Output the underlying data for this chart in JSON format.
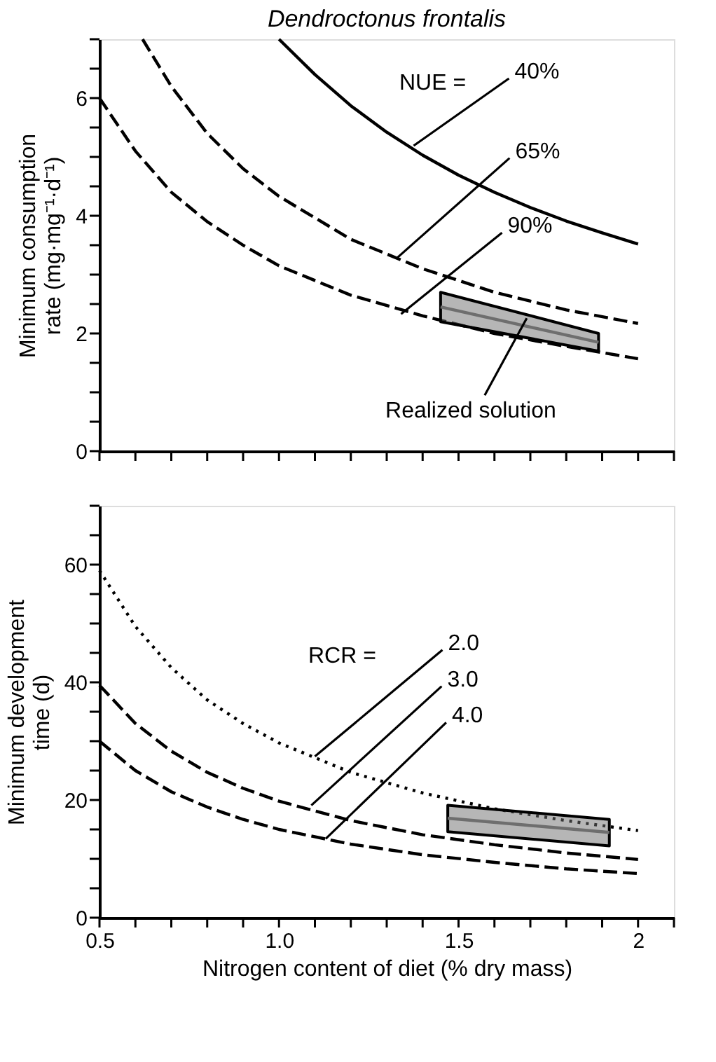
{
  "chart_data": [
    {
      "type": "line",
      "title": "Dendroctonus frontalis",
      "ylabel": "Minimum consumption rate (mg·mg⁻¹·d⁻¹)",
      "xlim": [
        0.5,
        2.1
      ],
      "xticks": [
        {
          "value": 0.5,
          "label": null
        },
        {
          "value": 0.6,
          "label": null
        },
        {
          "value": 0.7,
          "label": null
        },
        {
          "value": 0.8,
          "label": null
        },
        {
          "value": 0.9,
          "label": null
        },
        {
          "value": 1.0,
          "label": null
        },
        {
          "value": 1.1,
          "label": null
        },
        {
          "value": 1.2,
          "label": null
        },
        {
          "value": 1.3,
          "label": null
        },
        {
          "value": 1.4,
          "label": null
        },
        {
          "value": 1.5,
          "label": null
        },
        {
          "value": 1.6,
          "label": null
        },
        {
          "value": 1.7,
          "label": null
        },
        {
          "value": 1.8,
          "label": null
        },
        {
          "value": 1.9,
          "label": null
        },
        {
          "value": 2.0,
          "label": null
        },
        {
          "value": 2.1,
          "label": null
        }
      ],
      "ylim": [
        0,
        7
      ],
      "yticks": [
        0,
        {
          "value": 0.5,
          "label": null
        },
        {
          "value": 1,
          "label": null
        },
        {
          "value": 1.5,
          "label": null
        },
        2,
        {
          "value": 2.5,
          "label": null
        },
        {
          "value": 3,
          "label": null
        },
        {
          "value": 3.5,
          "label": null
        },
        4,
        {
          "value": 4.5,
          "label": null
        },
        {
          "value": 5,
          "label": null
        },
        {
          "value": 5.5,
          "label": null
        },
        6,
        {
          "value": 6.5,
          "label": null
        },
        {
          "value": 7,
          "label": null
        }
      ],
      "tick_labels": "y",
      "grid": false,
      "series": [
        {
          "line_style": "solid",
          "color": "#000000",
          "x": [
            1.0,
            1.1,
            1.2,
            1.3,
            1.4,
            1.5,
            1.6,
            1.7,
            1.8,
            1.9,
            2.0
          ],
          "values": [
            7.0,
            6.4,
            5.87,
            5.42,
            5.03,
            4.69,
            4.4,
            4.14,
            3.91,
            3.71,
            3.52
          ]
        },
        {
          "line_style": "dashed",
          "color": "#000000",
          "x": [
            0.62,
            0.7,
            0.8,
            0.9,
            1.0,
            1.2,
            1.4,
            1.6,
            1.8,
            2.0
          ],
          "values": [
            7.0,
            6.2,
            5.4,
            4.8,
            4.33,
            3.6,
            3.1,
            2.7,
            2.4,
            2.17
          ]
        },
        {
          "line_style": "dashed",
          "color": "#000000",
          "x": [
            0.5,
            0.6,
            0.7,
            0.8,
            0.9,
            1.0,
            1.2,
            1.4,
            1.6,
            1.8,
            2.0
          ],
          "values": [
            6.0,
            5.1,
            4.4,
            3.9,
            3.5,
            3.15,
            2.65,
            2.3,
            2.0,
            1.78,
            1.57
          ]
        },
        {
          "line_style": "solid",
          "color": "#6e6e6e",
          "x": [
            1.45,
            1.89
          ],
          "values": [
            2.45,
            1.85
          ],
          "lower": [
            2.2,
            1.7
          ],
          "upper": [
            2.7,
            2.0
          ]
        }
      ],
      "annotations": [
        "NUE =",
        {
          "text": "40%",
          "x": 1.375,
          "y": 5.19
        },
        {
          "text": "65%",
          "x": 1.33,
          "y": 3.29
        },
        {
          "text": "90%",
          "x": 1.34,
          "y": 2.33
        },
        {
          "text": "Realized solution",
          "x": 1.69,
          "y": 2.26
        }
      ]
    },
    {
      "type": "line",
      "xlabel": "Nitrogen content of diet (% dry mass)",
      "ylabel": "Minimum development time (d)",
      "xlim": [
        0.5,
        2.1
      ],
      "xticks": [
        {
          "value": 0.5,
          "label": "0.5"
        },
        {
          "value": 0.6,
          "label": null
        },
        {
          "value": 0.7,
          "label": null
        },
        {
          "value": 0.8,
          "label": null
        },
        {
          "value": 0.9,
          "label": null
        },
        {
          "value": 1.0,
          "label": "1.0"
        },
        {
          "value": 1.1,
          "label": null
        },
        {
          "value": 1.2,
          "label": null
        },
        {
          "value": 1.3,
          "label": null
        },
        {
          "value": 1.4,
          "label": null
        },
        {
          "value": 1.5,
          "label": "1.5"
        },
        {
          "value": 1.6,
          "label": null
        },
        {
          "value": 1.7,
          "label": null
        },
        {
          "value": 1.8,
          "label": null
        },
        {
          "value": 1.9,
          "label": null
        },
        {
          "value": 2.0,
          "label": "2"
        },
        {
          "value": 2.1,
          "label": null
        }
      ],
      "ylim": [
        0,
        70
      ],
      "yticks": [
        0,
        {
          "value": 5,
          "label": null
        },
        {
          "value": 10,
          "label": null
        },
        {
          "value": 15,
          "label": null
        },
        20,
        {
          "value": 25,
          "label": null
        },
        {
          "value": 30,
          "label": null
        },
        {
          "value": 35,
          "label": null
        },
        40,
        {
          "value": 45,
          "label": null
        },
        {
          "value": 50,
          "label": null
        },
        {
          "value": 55,
          "label": null
        },
        60,
        {
          "value": 65,
          "label": null
        },
        {
          "value": 70,
          "label": null
        }
      ],
      "grid": false,
      "series": [
        {
          "line_style": "dotted",
          "color": "#000000",
          "x": [
            0.5,
            0.6,
            0.7,
            0.8,
            0.9,
            1.0,
            1.2,
            1.4,
            1.6,
            1.8,
            2.0
          ],
          "values": [
            59,
            49.5,
            42.5,
            37,
            33,
            29.7,
            24.7,
            21.2,
            18.5,
            16.5,
            14.8
          ]
        },
        {
          "line_style": "dashed",
          "color": "#000000",
          "x": [
            0.5,
            0.6,
            0.7,
            0.8,
            0.9,
            1.0,
            1.2,
            1.4,
            1.6,
            1.8,
            2.0
          ],
          "values": [
            39.5,
            33,
            28.3,
            24.7,
            22,
            19.8,
            16.5,
            14.1,
            12.4,
            11,
            9.9
          ]
        },
        {
          "line_style": "dashed",
          "color": "#000000",
          "x": [
            0.5,
            0.6,
            0.7,
            0.8,
            0.9,
            1.0,
            1.2,
            1.4,
            1.6,
            1.8,
            2.0
          ],
          "values": [
            30,
            25,
            21.4,
            18.8,
            16.7,
            15,
            12.5,
            10.7,
            9.4,
            8.3,
            7.5
          ]
        },
        {
          "line_style": "solid",
          "color": "#6e6e6e",
          "x": [
            1.47,
            1.92
          ],
          "values": [
            16.9,
            14.5
          ],
          "lower": [
            14.6,
            12.2
          ],
          "upper": [
            19.1,
            16.7
          ]
        }
      ],
      "annotations": [
        "RCR =",
        {
          "text": "2.0",
          "x": 1.1,
          "y": 27.4
        },
        {
          "text": "3.0",
          "x": 1.09,
          "y": 19.1
        },
        {
          "text": "4.0",
          "x": 1.13,
          "y": 13.4
        }
      ]
    }
  ]
}
